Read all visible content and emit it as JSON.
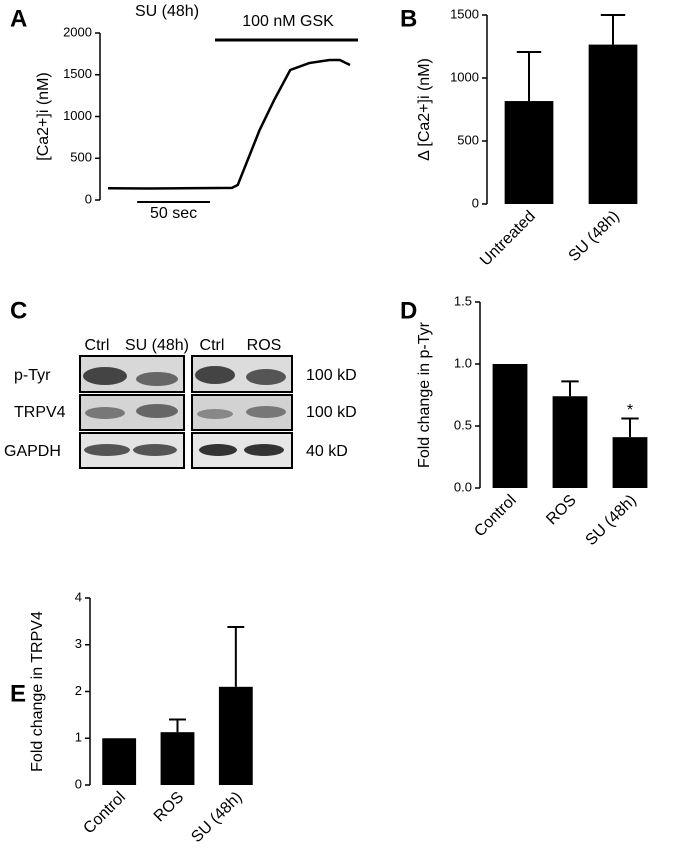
{
  "chart_data": [
    {
      "type": "line",
      "panel_label": "A",
      "title": "SU (48h)",
      "y_label": "[Ca2+]i (nM)",
      "x": [
        0,
        28.8,
        63,
        85,
        89,
        104,
        114,
        125,
        138,
        152,
        159,
        166
      ],
      "values": [
        140,
        138,
        142,
        145,
        180,
        838,
        1198,
        1557,
        1640,
        1677,
        1677,
        1617
      ],
      "color": "#000000",
      "xlim": [
        0,
        166
      ],
      "ylim": [
        0,
        2000
      ],
      "yticks": [
        0,
        500,
        1000,
        1500,
        2000
      ],
      "scale_bar": {
        "value": 50,
        "label": "50 sec"
      },
      "annotation": "100 nM GSK"
    },
    {
      "type": "bar",
      "panel_label": "B",
      "y_label": "Δ [Ca2+]i (nM)",
      "categories": [
        "Untreated",
        "SU (48h)"
      ],
      "values": [
        817,
        1265
      ],
      "errors": [
        389,
        235
      ],
      "color": "#000000",
      "ylim": [
        0,
        1500
      ],
      "yticks": [
        0,
        500,
        1000,
        1500
      ]
    },
    {
      "type": "bar",
      "panel_label": "D",
      "y_label": "Fold change in p-Tyr",
      "categories": [
        "Control",
        "ROS",
        "SU (48h)"
      ],
      "values": [
        1.0,
        0.74,
        0.41
      ],
      "errors": [
        0,
        0.12,
        0.15
      ],
      "color": "#000000",
      "ylim": [
        0,
        1.5
      ],
      "yticks": [
        {
          "value": 0,
          "label": "0.0"
        },
        {
          "value": 0.5,
          "label": "0.5"
        },
        {
          "value": 1,
          "label": "1.0"
        },
        {
          "value": 1.5,
          "label": "1.5"
        }
      ],
      "annotation": "*"
    },
    {
      "type": "bar",
      "panel_label": "E",
      "y_label": "Fold change in TRPV4",
      "categories": [
        "Control",
        "ROS",
        "SU (48h)"
      ],
      "values": [
        1.0,
        1.13,
        2.1
      ],
      "errors": [
        0,
        0.27,
        1.28
      ],
      "color": "#000000",
      "ylim": [
        0,
        4
      ],
      "yticks": [
        0,
        1,
        2,
        3,
        4
      ]
    }
  ],
  "blot": {
    "panel_label": "C",
    "lanes": [
      "Ctrl",
      "SU (48h)",
      "Ctrl",
      "ROS"
    ],
    "rows": [
      {
        "label": "p-Tyr",
        "size": "100 kD"
      },
      {
        "label": "TRPV4",
        "size": "100 kD"
      },
      {
        "label": "GAPDH",
        "size": "40 kD"
      }
    ]
  }
}
